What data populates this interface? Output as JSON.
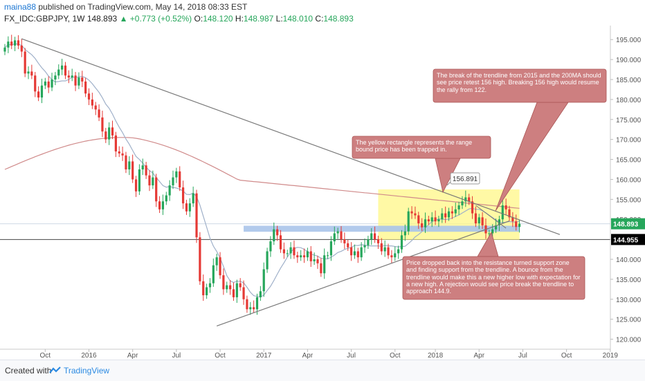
{
  "header": {
    "user": "maina88",
    "published": "published on TradingView.com, May 14, 2018 08:33 EST",
    "symbol": "FX_IDC:GBPJPY, 1W",
    "last": "148.893",
    "change": "▲ +0.773 (+0.52%)",
    "o_label": "O:",
    "o_value": "148.120",
    "h_label": "H:",
    "h_value": "148.987",
    "l_label": "L:",
    "l_value": "148.010",
    "c_label": "C:",
    "c_value": "148.893"
  },
  "footer": {
    "created_with": "Created with",
    "brand": "TradingView"
  },
  "colors": {
    "up": "#26a65b",
    "down": "#e53935",
    "ma_red": "#d08a8a",
    "ma_blue": "#9fb0c9",
    "trend": "#777777",
    "annotation_bg": "#cd7f80",
    "range_box": "#fff787",
    "support_box": "#aac4ea"
  },
  "chart_data": {
    "type": "candlestick",
    "x_tick_labels": [
      "Oct",
      "2016",
      "Apr",
      "Jul",
      "Oct",
      "2017",
      "Apr",
      "Jul",
      "Oct",
      "2018",
      "Apr",
      "Jul",
      "Oct",
      "2019"
    ],
    "y_tick_labels": [
      "195.000",
      "190.000",
      "185.000",
      "180.000",
      "175.000",
      "170.000",
      "165.000",
      "160.000",
      "155.000",
      "150.000",
      "145.000",
      "140.000",
      "135.000",
      "130.000",
      "125.000",
      "120.000"
    ],
    "ylim": [
      117.5,
      198.5
    ],
    "price_labels": {
      "last": "148.893",
      "level": "144.955"
    },
    "closes": [
      193,
      194.5,
      193.5,
      194.8,
      193.5,
      192,
      186.5,
      187,
      186,
      182,
      180.5,
      183.5,
      184.5,
      183,
      185,
      186,
      187.5,
      188.5,
      186,
      185.5,
      186,
      183.5,
      185.5,
      184.5,
      181.5,
      180,
      178.5,
      177.5,
      175.5,
      172,
      170,
      173,
      171,
      167,
      166.5,
      166,
      162.5,
      164.5,
      160,
      157,
      162.5,
      163.5,
      161,
      158.5,
      160.5,
      154.5,
      152.5,
      154.5,
      156,
      158.5,
      160.5,
      162,
      158,
      154,
      152,
      154,
      156.5,
      145.5,
      134.5,
      131,
      133,
      134,
      138.5,
      140.5,
      136,
      132.5,
      133.5,
      132.5,
      130.5,
      134,
      133,
      130,
      127.5,
      128,
      127.5,
      130.5,
      132,
      137.5,
      142,
      144.5,
      147.5,
      146,
      142.5,
      141.5,
      141.5,
      143,
      141,
      140.5,
      141,
      140.5,
      142,
      139.5,
      140,
      139,
      136.5,
      141,
      141,
      144.5,
      146.5,
      147,
      145,
      144,
      143,
      141,
      142,
      140.5,
      143,
      143.5,
      145,
      146.5,
      145,
      144,
      142,
      143,
      141,
      140.5,
      141.5,
      142.5,
      146,
      147,
      152,
      151.5,
      151,
      149,
      148,
      150,
      149.5,
      150.5,
      149.5,
      150,
      151.5,
      150.5,
      152,
      151.5,
      152.5,
      153.5,
      154.5,
      155.5,
      154.5,
      151.5,
      149,
      150.5,
      148.5,
      146.5,
      146.5,
      147.5,
      148.5,
      150,
      153.5,
      152.5,
      150.5,
      149.5,
      148.1,
      148.9
    ],
    "series": [
      {
        "name": "MA 200",
        "color": "#d08a8a"
      },
      {
        "name": "MA 50",
        "color": "#9fb0c9"
      }
    ],
    "trendlines": [
      {
        "from": [
          "2015-07",
          195.2
        ],
        "to": [
          "2018-10",
          146.2
        ]
      },
      {
        "from": [
          "2016-10",
          123.3
        ],
        "to": [
          "2018-05",
          149.6
        ]
      }
    ],
    "annotations": [
      {
        "text": "The break of the trendline from 2015 and the 200MA should see price retest 156 high. Breaking 156 high would resume the rally from 122."
      },
      {
        "text": "The yellow rectangle represents the range bound price has been trapped in."
      },
      {
        "text": "156.891"
      },
      {
        "text": "Price dropped back into the resistance turned support zone and finding support from the trendline. A bounce from the trendline would make this a new higher low with expectation for a new high. A rejection would see price break the trendline to approach 144.9."
      }
    ]
  }
}
